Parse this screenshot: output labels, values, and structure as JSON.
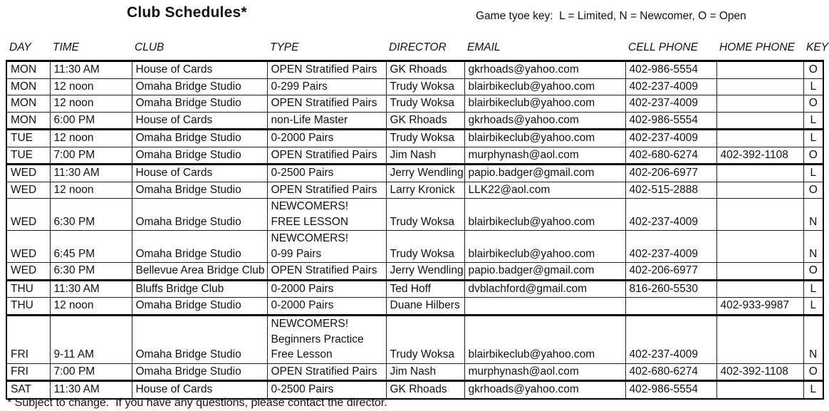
{
  "title": "Club Schedules*",
  "legend": "Game tyoe key:  L = Limited, N = Newcomer, O = Open",
  "footnote": "* Subject to change.  If you have any questions, please contact the director.",
  "table": {
    "columns": [
      "DAY",
      "TIME",
      "CLUB",
      "TYPE",
      "DIRECTOR",
      "EMAIL",
      "CELL PHONE",
      "HOME PHONE",
      "KEY"
    ],
    "rows": [
      {
        "day": "MON",
        "time": "11:30 AM",
        "club": "House of Cards",
        "type_lines": [
          "OPEN Stratified Pairs"
        ],
        "director": "GK Rhoads",
        "email": "gkrhoads@yahoo.com",
        "cell_phone": "402-986-5554",
        "home_phone": "",
        "key": "O",
        "first_of_day": true
      },
      {
        "day": "MON",
        "time": "12 noon",
        "club": "Omaha Bridge Studio",
        "type_lines": [
          "0-299 Pairs"
        ],
        "director": "Trudy Woksa",
        "email": "blairbikeclub@yahoo.com",
        "cell_phone": "402-237-4009",
        "home_phone": "",
        "key": "L",
        "first_of_day": false
      },
      {
        "day": "MON",
        "time": "12 noon",
        "club": "Omaha Bridge Studio",
        "type_lines": [
          "OPEN Stratified Pairs"
        ],
        "director": "Trudy Woksa",
        "email": "blairbikeclub@yahoo.com",
        "cell_phone": "402-237-4009",
        "home_phone": "",
        "key": "O",
        "first_of_day": false
      },
      {
        "day": "MON",
        "time": "6:00 PM",
        "club": "House of Cards",
        "type_lines": [
          "non-Life Master"
        ],
        "director": "GK Rhoads",
        "email": "gkrhoads@yahoo.com",
        "cell_phone": "402-986-5554",
        "home_phone": "",
        "key": "L",
        "first_of_day": false
      },
      {
        "day": "TUE",
        "time": "12 noon",
        "club": "Omaha Bridge Studio",
        "type_lines": [
          "0-2000 Pairs"
        ],
        "director": "Trudy Woksa",
        "email": "blairbikeclub@yahoo.com",
        "cell_phone": "402-237-4009",
        "home_phone": "",
        "key": "L",
        "first_of_day": true
      },
      {
        "day": "TUE",
        "time": "7:00 PM",
        "club": "Omaha Bridge Studio",
        "type_lines": [
          "OPEN Stratified Pairs"
        ],
        "director": "Jim Nash",
        "email": "murphynash@aol.com",
        "cell_phone": "402-680-6274",
        "home_phone": "402-392-1108",
        "key": "O",
        "first_of_day": false
      },
      {
        "day": "WED",
        "time": "11:30 AM",
        "club": "House of Cards",
        "type_lines": [
          "0-2500 Pairs"
        ],
        "director": "Jerry Wendling",
        "email": "papio.badger@gmail.com",
        "cell_phone": "402-206-6977",
        "home_phone": "",
        "key": "L",
        "first_of_day": true
      },
      {
        "day": "WED",
        "time": "12 noon",
        "club": "Omaha Bridge Studio",
        "type_lines": [
          "OPEN Stratified Pairs"
        ],
        "director": "Larry Kronick",
        "email": "LLK22@aol.com",
        "cell_phone": "402-515-2888",
        "home_phone": "",
        "key": "O",
        "first_of_day": false
      },
      {
        "day": "WED",
        "time": "6:30 PM",
        "club": "Omaha Bridge Studio",
        "type_lines": [
          "NEWCOMERS!",
          "FREE LESSON"
        ],
        "director": "Trudy Woksa",
        "email": "blairbikeclub@yahoo.com",
        "cell_phone": "402-237-4009",
        "home_phone": "",
        "key": "N",
        "first_of_day": false
      },
      {
        "day": "WED",
        "time": "6:45 PM",
        "club": "Omaha Bridge Studio",
        "type_lines": [
          "NEWCOMERS!",
          "0-99 Pairs"
        ],
        "director": "Trudy Woksa",
        "email": "blairbikeclub@yahoo.com",
        "cell_phone": "402-237-4009",
        "home_phone": "",
        "key": "N",
        "first_of_day": false
      },
      {
        "day": "WED",
        "time": "6:30 PM",
        "club": "Bellevue Area Bridge Club",
        "type_lines": [
          "OPEN Stratified Pairs"
        ],
        "director": "Jerry Wendling",
        "email": "papio.badger@gmail.com",
        "cell_phone": "402-206-6977",
        "home_phone": "",
        "key": "O",
        "first_of_day": false
      },
      {
        "day": "THU",
        "time": "11:30 AM",
        "club": "Bluffs Bridge Club",
        "type_lines": [
          "0-2000 Pairs"
        ],
        "director": "Ted Hoff",
        "email": "dvblachford@gmail.com",
        "cell_phone": "816-260-5530",
        "home_phone": "",
        "key": "L",
        "first_of_day": true
      },
      {
        "day": "THU",
        "time": "12 noon",
        "club": "Omaha Bridge Studio",
        "type_lines": [
          "0-2000 Pairs"
        ],
        "director": "Duane Hilbers",
        "email": "",
        "cell_phone": "",
        "home_phone": "402-933-9987",
        "key": "L",
        "first_of_day": false
      },
      {
        "day": "FRI",
        "time": "9-11 AM",
        "club": "Omaha Bridge Studio",
        "type_lines": [
          "NEWCOMERS!",
          "Beginners Practice",
          "Free Lesson"
        ],
        "director": "Trudy Woksa",
        "email": "blairbikeclub@yahoo.com",
        "cell_phone": "402-237-4009",
        "home_phone": "",
        "key": "N",
        "first_of_day": true
      },
      {
        "day": "FRI",
        "time": "7:00 PM",
        "club": "Omaha Bridge Studio",
        "type_lines": [
          "OPEN Stratified Pairs"
        ],
        "director": "Jim Nash",
        "email": "murphynash@aol.com",
        "cell_phone": "402-680-6274",
        "home_phone": "402-392-1108",
        "key": "O",
        "first_of_day": false
      },
      {
        "day": "SAT",
        "time": "11:30 AM",
        "club": "House of Cards",
        "type_lines": [
          "0-2500 Pairs"
        ],
        "director": "GK Rhoads",
        "email": "gkrhoads@yahoo.com",
        "cell_phone": "402-986-5554",
        "home_phone": "",
        "key": "L",
        "first_of_day": true
      }
    ]
  }
}
